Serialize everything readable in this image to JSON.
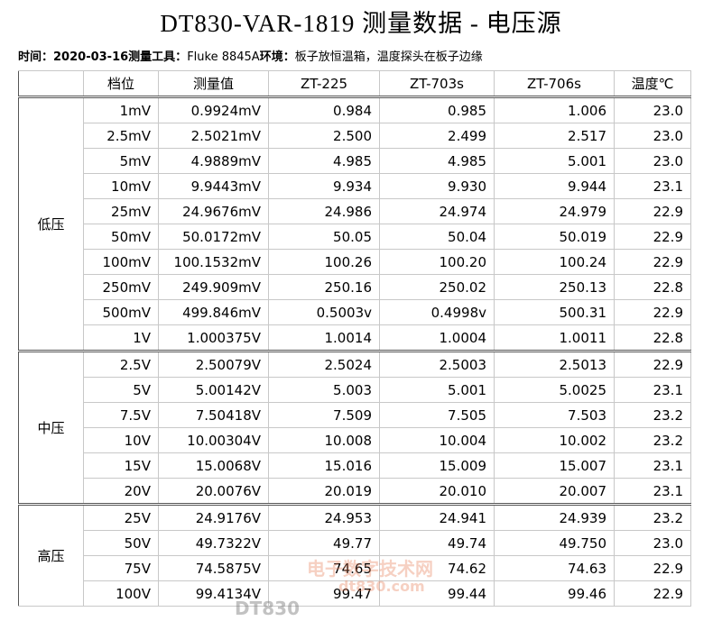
{
  "title": "DT830-VAR-1819 测量数据 - 电压源",
  "info": [
    {
      "text": "时间：",
      "bold": true
    },
    {
      "text": "2020-03-16",
      "bold": true
    },
    {
      "text": "测量工具：",
      "bold": true
    },
    {
      "text": "Fluke 8845A",
      "bold": false
    },
    {
      "text": "环境：",
      "bold": true
    },
    {
      "text": "板子放恒温箱，温度探头在板子边缘",
      "bold": false
    }
  ],
  "table": {
    "header": [
      "档位",
      "测量值",
      "ZT-225",
      "ZT-703s",
      "ZT-706s",
      "温度℃"
    ],
    "groups": [
      {
        "label": "低压",
        "rows": [
          [
            "1mV",
            "0.9924mV",
            "0.984",
            "0.985",
            "1.006",
            "23.0"
          ],
          [
            "2.5mV",
            "2.5021mV",
            "2.500",
            "2.499",
            "2.517",
            "23.0"
          ],
          [
            "5mV",
            "4.9889mV",
            "4.985",
            "4.985",
            "5.001",
            "23.0"
          ],
          [
            "10mV",
            "9.9443mV",
            "9.934",
            "9.930",
            "9.944",
            "23.1"
          ],
          [
            "25mV",
            "24.9676mV",
            "24.986",
            "24.974",
            "24.979",
            "22.9"
          ],
          [
            "50mV",
            "50.0172mV",
            "50.05",
            "50.04",
            "50.019",
            "22.9"
          ],
          [
            "100mV",
            "100.1532mV",
            "100.26",
            "100.20",
            "100.24",
            "22.9"
          ],
          [
            "250mV",
            "249.909mV",
            "250.16",
            "250.02",
            "250.13",
            "22.8"
          ],
          [
            "500mV",
            "499.846mV",
            "0.5003v",
            "0.4998v",
            "500.31",
            "22.9"
          ],
          [
            "1V",
            "1.000375V",
            "1.0014",
            "1.0004",
            "1.0011",
            "22.8"
          ]
        ]
      },
      {
        "label": "中压",
        "rows": [
          [
            "2.5V",
            "2.50079V",
            "2.5024",
            "2.5003",
            "2.5013",
            "22.9"
          ],
          [
            "5V",
            "5.00142V",
            "5.003",
            "5.001",
            "5.0025",
            "23.1"
          ],
          [
            "7.5V",
            "7.50418V",
            "7.509",
            "7.505",
            "7.503",
            "23.2"
          ],
          [
            "10V",
            "10.00304V",
            "10.008",
            "10.004",
            "10.002",
            "23.2"
          ],
          [
            "15V",
            "15.0068V",
            "15.016",
            "15.009",
            "15.007",
            "23.1"
          ],
          [
            "20V",
            "20.0076V",
            "20.019",
            "20.010",
            "20.007",
            "23.1"
          ]
        ]
      },
      {
        "label": "高压",
        "rows": [
          [
            "25V",
            "24.9176V",
            "24.953",
            "24.941",
            "24.939",
            "23.2"
          ],
          [
            "50V",
            "49.7322V",
            "49.77",
            "49.74",
            "49.750",
            "23.0"
          ],
          [
            "75V",
            "74.5875V",
            "74.65",
            "74.62",
            "74.63",
            "22.9"
          ],
          [
            "100V",
            "99.4134V",
            "99.47",
            "99.44",
            "99.46",
            "22.9"
          ]
        ]
      }
    ]
  },
  "watermark": {
    "site": "电子数字技术网",
    "brand": "DT830",
    "url": "dt830.com"
  }
}
